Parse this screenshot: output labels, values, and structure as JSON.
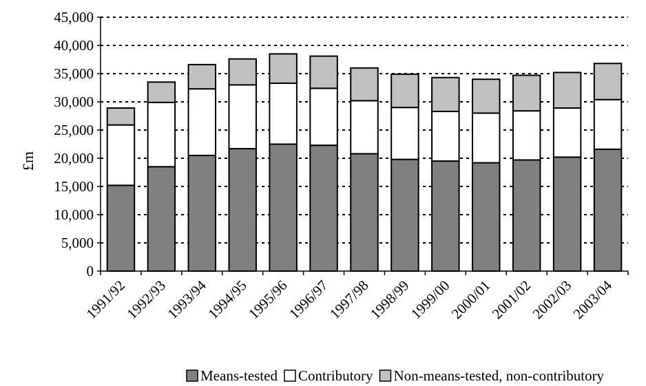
{
  "chart_data": {
    "type": "bar",
    "stacked": true,
    "ylabel": "£m",
    "ylim": [
      0,
      45000
    ],
    "yticks": [
      "0",
      "5,000",
      "10,000",
      "15,000",
      "20,000",
      "25,000",
      "30,000",
      "35,000",
      "40,000",
      "45,000"
    ],
    "grid": "horizontal dashed",
    "legend_position": "bottom",
    "categories": [
      "1991/92",
      "1992/93",
      "1993/94",
      "1994/95",
      "1995/96",
      "1996/97",
      "1997/98",
      "1998/99",
      "1999/00",
      "2000/01",
      "2001/02",
      "2002/03",
      "2003/04"
    ],
    "series": [
      {
        "name": "Means-tested",
        "color": "#808080",
        "values": [
          15200,
          18500,
          20500,
          21700,
          22500,
          22300,
          20800,
          19800,
          19500,
          19200,
          19700,
          20200,
          21600
        ]
      },
      {
        "name": "Contributory",
        "color": "#ffffff",
        "values": [
          10700,
          11400,
          11800,
          11300,
          10800,
          10100,
          9400,
          9200,
          8800,
          8800,
          8700,
          8700,
          8800
        ]
      },
      {
        "name": "Non-means-tested, non-contributory",
        "color": "#c0c0c0",
        "values": [
          3000,
          3600,
          4300,
          4600,
          5200,
          5700,
          5800,
          5900,
          6000,
          6000,
          6300,
          6300,
          6400
        ]
      }
    ]
  }
}
